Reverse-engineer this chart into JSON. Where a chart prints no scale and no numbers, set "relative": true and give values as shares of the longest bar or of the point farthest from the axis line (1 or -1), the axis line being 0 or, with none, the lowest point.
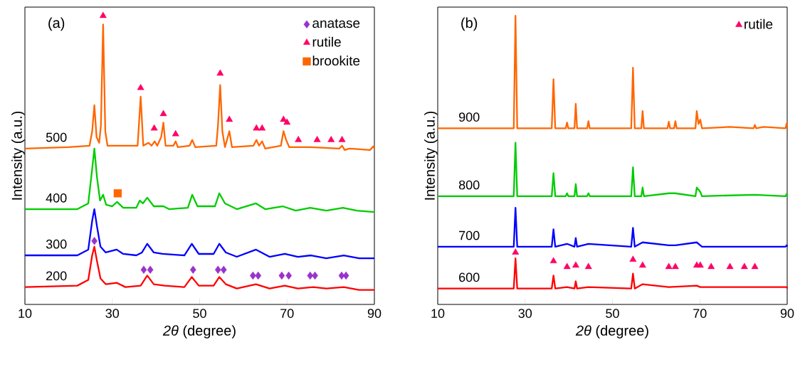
{
  "chart_data": [
    {
      "type": "line",
      "title": "(a)",
      "xlabel": "*2θ* (degree)",
      "ylabel": "Intensity (a.u.)",
      "relative": true,
      "xlim": [
        10,
        90
      ],
      "xticks": [
        10,
        30,
        50,
        70,
        90
      ],
      "legend": "top right",
      "marker": "none",
      "line_style": "solid",
      "series": [
        {
          "name": "500",
          "color": "#ff6600",
          "x": [
            10,
            20,
            24.8,
            25.4,
            25.9,
            26.4,
            27.0,
            27.4,
            27.9,
            28.4,
            28.9,
            31.0,
            35.8,
            36.5,
            37.1,
            38.3,
            39.0,
            39.7,
            40.3,
            41.2,
            41.7,
            42.2,
            44.0,
            44.5,
            45.0,
            47.7,
            48.3,
            49.0,
            53.8,
            54.2,
            54.7,
            55.2,
            55.8,
            56.8,
            57.4,
            62.3,
            63.0,
            63.6,
            64.3,
            65.0,
            68.6,
            69.2,
            69.8,
            70.5,
            75.3,
            82.0,
            82.6,
            83.2,
            84.3,
            89.0,
            89.8,
            90
          ],
          "values": [
            0.54,
            0.545,
            0.55,
            0.6,
            0.69,
            0.58,
            0.56,
            0.62,
            0.97,
            0.6,
            0.55,
            0.55,
            0.55,
            0.72,
            0.55,
            0.56,
            0.55,
            0.565,
            0.55,
            0.58,
            0.63,
            0.55,
            0.55,
            0.565,
            0.545,
            0.55,
            0.57,
            0.545,
            0.55,
            0.62,
            0.76,
            0.6,
            0.545,
            0.6,
            0.545,
            0.55,
            0.57,
            0.55,
            0.565,
            0.54,
            0.55,
            0.6,
            0.57,
            0.545,
            0.545,
            0.54,
            0.55,
            0.535,
            0.54,
            0.535,
            0.548,
            0.54
          ]
        },
        {
          "name": "400",
          "color": "#00cc00",
          "x": [
            10,
            22,
            24.5,
            25.4,
            25.9,
            26.5,
            27.2,
            27.9,
            28.6,
            30,
            31.1,
            32.5,
            35.5,
            36.3,
            37.0,
            38.0,
            39.5,
            41.7,
            43,
            47.3,
            48.3,
            49.5,
            53.5,
            54.5,
            55.8,
            56.5,
            58.5,
            62.9,
            65,
            69.0,
            72,
            75.3,
            79,
            82.8,
            86,
            90
          ],
          "values": [
            0.33,
            0.33,
            0.35,
            0.47,
            0.54,
            0.44,
            0.36,
            0.38,
            0.345,
            0.34,
            0.355,
            0.335,
            0.335,
            0.36,
            0.35,
            0.37,
            0.34,
            0.34,
            0.33,
            0.335,
            0.38,
            0.34,
            0.34,
            0.385,
            0.35,
            0.345,
            0.33,
            0.35,
            0.33,
            0.34,
            0.325,
            0.335,
            0.325,
            0.335,
            0.325,
            0.32
          ]
        },
        {
          "name": "300",
          "color": "#0000ff",
          "x": [
            10,
            22,
            24.5,
            25.4,
            25.9,
            26.5,
            27.3,
            28.5,
            31.0,
            32.5,
            35.5,
            36.8,
            38.0,
            39.5,
            41.5,
            46.5,
            48.2,
            49.8,
            53.2,
            54.5,
            56,
            58.5,
            62.9,
            66,
            69.5,
            72.5,
            75.5,
            79,
            83,
            86.5,
            90
          ],
          "values": [
            0.17,
            0.17,
            0.19,
            0.29,
            0.33,
            0.27,
            0.2,
            0.18,
            0.19,
            0.175,
            0.17,
            0.18,
            0.21,
            0.18,
            0.175,
            0.17,
            0.21,
            0.175,
            0.175,
            0.21,
            0.18,
            0.165,
            0.19,
            0.165,
            0.175,
            0.165,
            0.17,
            0.16,
            0.17,
            0.16,
            0.16
          ]
        },
        {
          "name": "200",
          "color": "#ff0000",
          "x": [
            10,
            22,
            24.5,
            25.4,
            25.9,
            26.5,
            27.3,
            28.5,
            31.0,
            33,
            36.5,
            38.0,
            39.5,
            42,
            46.5,
            48.2,
            49.8,
            53.2,
            54.5,
            56,
            58.5,
            62.9,
            66,
            69.5,
            72.5,
            76,
            79,
            83,
            86.5,
            90
          ],
          "values": [
            0.06,
            0.065,
            0.085,
            0.17,
            0.2,
            0.15,
            0.09,
            0.07,
            0.075,
            0.06,
            0.065,
            0.1,
            0.07,
            0.065,
            0.06,
            0.095,
            0.065,
            0.065,
            0.095,
            0.07,
            0.055,
            0.07,
            0.055,
            0.065,
            0.055,
            0.06,
            0.055,
            0.06,
            0.05,
            0.05
          ]
        },
        {
          "name": "anatase",
          "type": "scatter",
          "marker": "diamond",
          "color": "#9933cc",
          "x": [
            25.9,
            37.2,
            38.7,
            48.5,
            54.2,
            55.5,
            62.2,
            63.4,
            68.8,
            70.4,
            75.3,
            76.4,
            82.5,
            83.5
          ],
          "values": [
            0.22,
            0.12,
            0.12,
            0.12,
            0.12,
            0.12,
            0.1,
            0.1,
            0.1,
            0.1,
            0.1,
            0.1,
            0.1,
            0.1
          ]
        },
        {
          "name": "rutile",
          "type": "scatter",
          "marker": "triangle",
          "color": "#ff0066",
          "x": [
            27.9,
            36.5,
            39.6,
            41.7,
            44.5,
            54.7,
            56.8,
            63.0,
            64.3,
            69.2,
            70.0,
            72.6,
            76.9,
            80.1,
            82.6
          ],
          "values": [
            1.0,
            0.75,
            0.61,
            0.66,
            0.59,
            0.8,
            0.64,
            0.61,
            0.61,
            0.64,
            0.63,
            0.57,
            0.57,
            0.57,
            0.57
          ]
        },
        {
          "name": "brookite",
          "type": "scatter",
          "marker": "square",
          "color": "#ff6600",
          "x": [
            31.25
          ],
          "values": [
            0.385
          ]
        }
      ]
    },
    {
      "type": "line",
      "title": "(b)",
      "xlabel": "*2θ* (degree)",
      "ylabel": "Intensity (a.u.)",
      "relative": true,
      "xlim": [
        10,
        90
      ],
      "xticks": [
        10,
        30,
        50,
        70,
        90
      ],
      "legend": "top right",
      "marker": "none",
      "line_style": "solid",
      "series": [
        {
          "name": "900",
          "color": "#ff6600",
          "x": [
            10,
            27.4,
            27.8,
            28.2,
            36.1,
            36.5,
            36.9,
            39.3,
            39.6,
            39.9,
            41.3,
            41.6,
            41.9,
            44.2,
            44.5,
            44.8,
            54.3,
            54.7,
            55.1,
            56.6,
            56.9,
            57.2,
            62.6,
            62.9,
            63.2,
            64.1,
            64.4,
            64.7,
            69.0,
            69.3,
            69.7,
            70.1,
            70.5,
            76.8,
            82.3,
            82.6,
            82.9,
            84.6,
            89.6,
            89.9,
            90
          ],
          "values": [
            0.61,
            0.61,
            1.0,
            0.61,
            0.61,
            0.78,
            0.61,
            0.61,
            0.63,
            0.61,
            0.61,
            0.695,
            0.61,
            0.61,
            0.635,
            0.61,
            0.61,
            0.82,
            0.61,
            0.61,
            0.67,
            0.61,
            0.61,
            0.633,
            0.61,
            0.61,
            0.635,
            0.61,
            0.61,
            0.67,
            0.625,
            0.64,
            0.61,
            0.615,
            0.61,
            0.622,
            0.61,
            0.615,
            0.61,
            0.628,
            0.615
          ]
        },
        {
          "name": "800",
          "color": "#00cc00",
          "x": [
            10,
            27.4,
            27.8,
            28.2,
            36.1,
            36.5,
            36.9,
            39.3,
            39.6,
            39.9,
            41.3,
            41.6,
            41.9,
            44.2,
            44.5,
            44.8,
            54.3,
            54.7,
            55.1,
            56.6,
            56.9,
            57.2,
            62.9,
            64.4,
            69.0,
            69.3,
            70.1,
            70.5,
            82.6,
            89.6,
            89.9,
            90
          ],
          "values": [
            0.375,
            0.375,
            0.56,
            0.375,
            0.375,
            0.455,
            0.375,
            0.375,
            0.385,
            0.375,
            0.375,
            0.417,
            0.375,
            0.375,
            0.385,
            0.375,
            0.375,
            0.475,
            0.375,
            0.375,
            0.405,
            0.375,
            0.385,
            0.385,
            0.375,
            0.405,
            0.39,
            0.375,
            0.38,
            0.375,
            0.383,
            0.377
          ]
        },
        {
          "name": "700",
          "color": "#0000ff",
          "x": [
            10,
            27.4,
            27.8,
            28.2,
            36.1,
            36.5,
            36.9,
            39.6,
            41.3,
            41.6,
            41.9,
            44.5,
            54.3,
            54.7,
            55.1,
            56.9,
            62.9,
            64.4,
            69.3,
            70.1,
            70.5,
            89.6,
            89.9,
            90
          ],
          "values": [
            0.2,
            0.2,
            0.335,
            0.2,
            0.2,
            0.26,
            0.2,
            0.21,
            0.2,
            0.23,
            0.2,
            0.21,
            0.2,
            0.265,
            0.2,
            0.215,
            0.205,
            0.205,
            0.215,
            0.205,
            0.2,
            0.2,
            0.205,
            0.2
          ]
        },
        {
          "name": "600",
          "color": "#ff0000",
          "x": [
            10,
            27.4,
            27.8,
            28.2,
            36.1,
            36.5,
            36.9,
            39.6,
            41.3,
            41.6,
            41.9,
            44.5,
            54.3,
            54.7,
            55.1,
            56.9,
            62.9,
            69.3,
            70.1,
            89.9,
            90
          ],
          "values": [
            0.055,
            0.055,
            0.16,
            0.055,
            0.055,
            0.1,
            0.055,
            0.06,
            0.055,
            0.08,
            0.055,
            0.06,
            0.055,
            0.107,
            0.055,
            0.07,
            0.06,
            0.065,
            0.06,
            0.06,
            0.055
          ]
        },
        {
          "name": "rutile",
          "type": "scatter",
          "marker": "triangle",
          "color": "#ff0066",
          "x": [
            27.8,
            36.5,
            39.6,
            41.6,
            44.5,
            54.7,
            56.9,
            62.9,
            64.4,
            69.3,
            70.1,
            72.6,
            76.9,
            80.2,
            82.6
          ],
          "values": [
            0.18,
            0.15,
            0.13,
            0.135,
            0.13,
            0.155,
            0.135,
            0.13,
            0.13,
            0.135,
            0.135,
            0.13,
            0.13,
            0.13,
            0.13
          ]
        }
      ]
    }
  ]
}
